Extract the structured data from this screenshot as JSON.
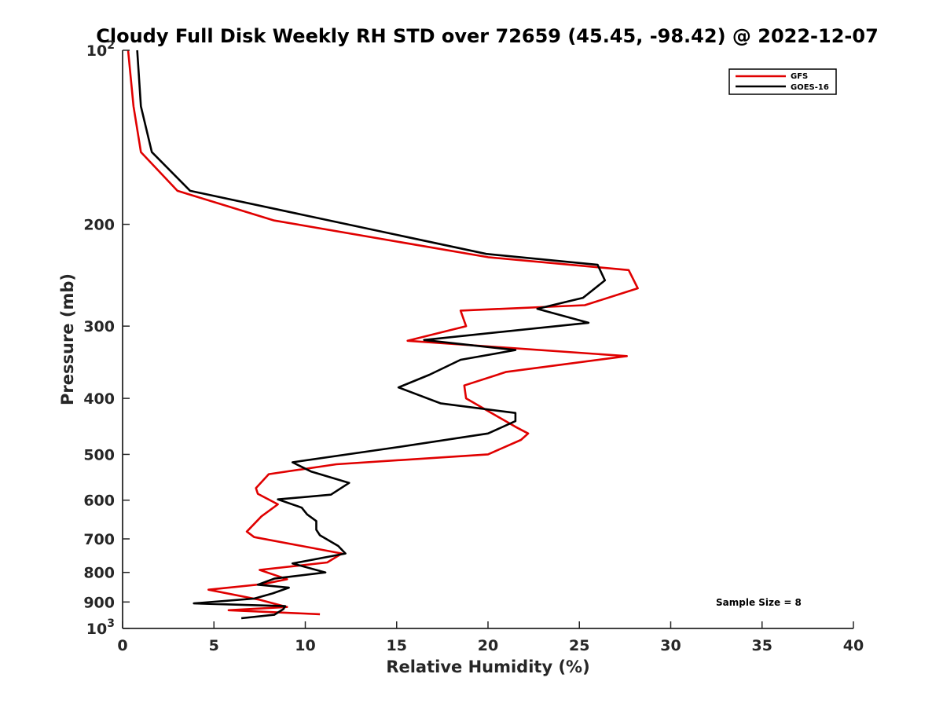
{
  "chart_data": {
    "type": "line",
    "title": "Cloudy Full Disk Weekly RH STD over 72659 (45.45, -98.42) @ 2022-12-07",
    "xlabel": "Relative Humidity (%)",
    "ylabel": "Pressure (mb)",
    "xlim": [
      0,
      40
    ],
    "ylim": [
      100,
      1000
    ],
    "yscale": "log",
    "y_reversed": true,
    "grid": false,
    "legend_position": "top-right",
    "x_ticks": [
      0,
      5,
      10,
      15,
      20,
      25,
      30,
      35,
      40
    ],
    "y_ticks": [
      {
        "value": 100,
        "label": "10",
        "sup": "2"
      },
      {
        "value": 200,
        "label": "200",
        "sup": ""
      },
      {
        "value": 300,
        "label": "300",
        "sup": ""
      },
      {
        "value": 400,
        "label": "400",
        "sup": ""
      },
      {
        "value": 500,
        "label": "500",
        "sup": ""
      },
      {
        "value": 600,
        "label": "600",
        "sup": ""
      },
      {
        "value": 700,
        "label": "700",
        "sup": ""
      },
      {
        "value": 800,
        "label": "800",
        "sup": ""
      },
      {
        "value": 900,
        "label": "900",
        "sup": ""
      },
      {
        "value": 1000,
        "label": "10",
        "sup": "3"
      }
    ],
    "series": [
      {
        "name": "GFS",
        "color": "#e00000",
        "rh": [
          0.3,
          0.6,
          1.0,
          3.0,
          8.3,
          20.0,
          27.7,
          28.2,
          25.3,
          18.5,
          18.8,
          15.6,
          27.6,
          21.0,
          18.7,
          18.8,
          21.5,
          22.2,
          21.8,
          20.0,
          11.7,
          8.0,
          7.3,
          7.4,
          8.5,
          7.6,
          6.8,
          7.2,
          9.8,
          12.0,
          11.2,
          7.5,
          9.0,
          7.7,
          4.7,
          7.5,
          9.0,
          5.8,
          10.8
        ],
        "pressure": [
          100,
          125,
          150,
          175,
          197,
          228,
          240,
          258,
          276,
          282,
          300,
          318,
          338,
          360,
          380,
          400,
          448,
          460,
          472,
          500,
          520,
          541,
          572,
          585,
          610,
          640,
          680,
          695,
          720,
          742,
          769,
          792,
          822,
          838,
          857,
          892,
          918,
          930,
          945
        ]
      },
      {
        "name": "GOES-16",
        "color": "#000000",
        "rh": [
          0.8,
          1.0,
          1.6,
          3.7,
          9.0,
          19.9,
          26.0,
          26.4,
          25.2,
          22.7,
          25.5,
          16.5,
          21.5,
          18.5,
          16.8,
          15.1,
          17.4,
          21.5,
          21.5,
          20.0,
          15.0,
          9.3,
          10.3,
          12.4,
          11.4,
          8.5,
          9.8,
          10.1,
          10.6,
          10.6,
          10.8,
          11.8,
          12.2,
          9.3,
          11.1,
          8.3,
          7.4,
          9.1,
          8.2,
          7.2,
          3.9,
          8.9,
          8.8,
          8.3,
          6.5
        ],
        "pressure": [
          100,
          125,
          150,
          175,
          190,
          225,
          235,
          250,
          268,
          280,
          296,
          317,
          330,
          343,
          364,
          383,
          408,
          424,
          438,
          460,
          486,
          516,
          535,
          560,
          587,
          598,
          618,
          635,
          652,
          675,
          690,
          720,
          742,
          772,
          800,
          820,
          840,
          850,
          870,
          888,
          905,
          915,
          926,
          947,
          960
        ]
      }
    ],
    "annotations": [
      "Sample Size = 8"
    ]
  }
}
